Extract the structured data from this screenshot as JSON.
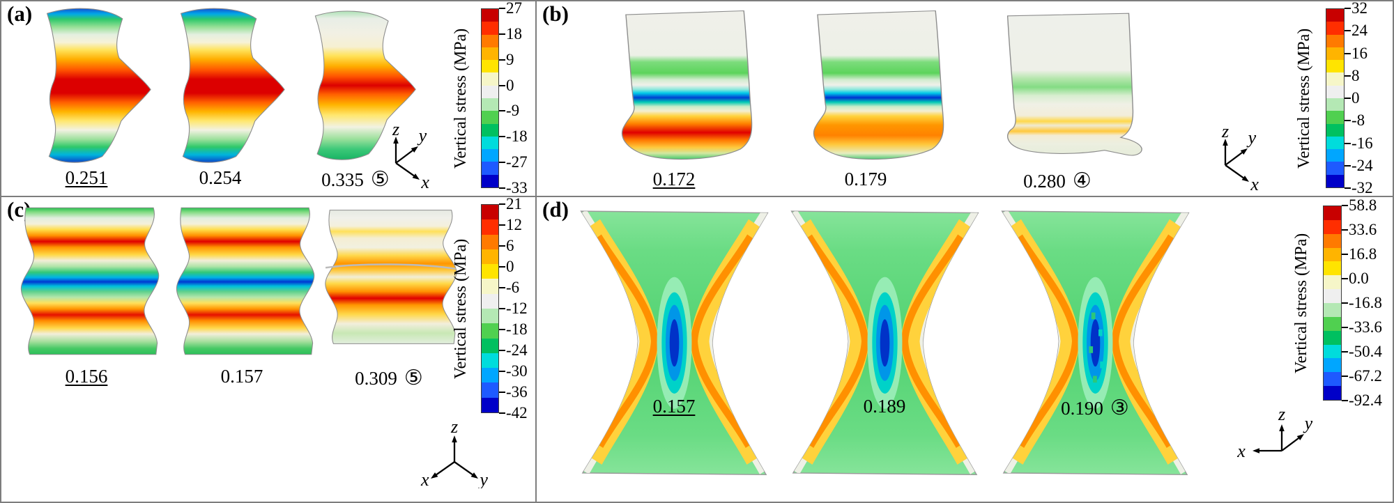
{
  "figure": {
    "colorbar_palette": [
      "#c80000",
      "#ff2e00",
      "#ff7a00",
      "#ffb400",
      "#ffe400",
      "#f6f6c8",
      "#efefef",
      "#b4e8b4",
      "#50d050",
      "#00c060",
      "#00dcdc",
      "#00a6ff",
      "#1e5aff",
      "#0000c8"
    ],
    "panels": [
      {
        "id": "a",
        "label": "(a)",
        "values": [
          {
            "text": "0.251",
            "underline": true,
            "suffix": ""
          },
          {
            "text": "0.254",
            "underline": false,
            "suffix": ""
          },
          {
            "text": "0.335",
            "underline": false,
            "suffix": "⑤"
          }
        ],
        "colorbar": {
          "title": "Vertical stress (MPa)",
          "ticks": [
            "27",
            "18",
            "9",
            "0",
            "-9",
            "-18",
            "-27",
            "-33"
          ]
        },
        "axes": [
          {
            "label": "z",
            "dir": "up"
          },
          {
            "label": "y",
            "dir": "upright"
          },
          {
            "label": "x",
            "dir": "downright"
          }
        ]
      },
      {
        "id": "b",
        "label": "(b)",
        "values": [
          {
            "text": "0.172",
            "underline": true,
            "suffix": ""
          },
          {
            "text": "0.179",
            "underline": false,
            "suffix": ""
          },
          {
            "text": "0.280",
            "underline": false,
            "suffix": "④"
          }
        ],
        "colorbar": {
          "title": "Vertical stress (MPa)",
          "ticks": [
            "32",
            "24",
            "16",
            "8",
            "0",
            "-8",
            "-16",
            "-24",
            "-32"
          ]
        },
        "axes": [
          {
            "label": "z",
            "dir": "up"
          },
          {
            "label": "y",
            "dir": "upright"
          },
          {
            "label": "x",
            "dir": "downright"
          }
        ]
      },
      {
        "id": "c",
        "label": "(c)",
        "values": [
          {
            "text": "0.156",
            "underline": true,
            "suffix": ""
          },
          {
            "text": "0.157",
            "underline": false,
            "suffix": ""
          },
          {
            "text": "0.309",
            "underline": false,
            "suffix": "⑤"
          }
        ],
        "colorbar": {
          "title": "Vertical stress (MPa)",
          "ticks": [
            "21",
            "12",
            "6",
            "0",
            "-6",
            "-12",
            "-18",
            "-24",
            "-30",
            "-36",
            "-42"
          ]
        },
        "axes": [
          {
            "label": "z",
            "dir": "up"
          },
          {
            "label": "x",
            "dir": "downleft"
          },
          {
            "label": "y",
            "dir": "downright"
          }
        ]
      },
      {
        "id": "d",
        "label": "(d)",
        "values": [
          {
            "text": "0.157",
            "underline": true,
            "suffix": ""
          },
          {
            "text": "0.189",
            "underline": false,
            "suffix": ""
          },
          {
            "text": "0.190",
            "underline": false,
            "suffix": "③"
          }
        ],
        "colorbar": {
          "title": "Vertical stress (MPa)",
          "ticks": [
            "58.8",
            "33.6",
            "16.8",
            "0.0",
            "-16.8",
            "-33.6",
            "-50.4",
            "-67.2",
            "-92.4"
          ]
        },
        "axes": [
          {
            "label": "z",
            "dir": "up"
          },
          {
            "label": "y",
            "dir": "upright"
          },
          {
            "label": "x",
            "dir": "left"
          }
        ]
      }
    ]
  }
}
